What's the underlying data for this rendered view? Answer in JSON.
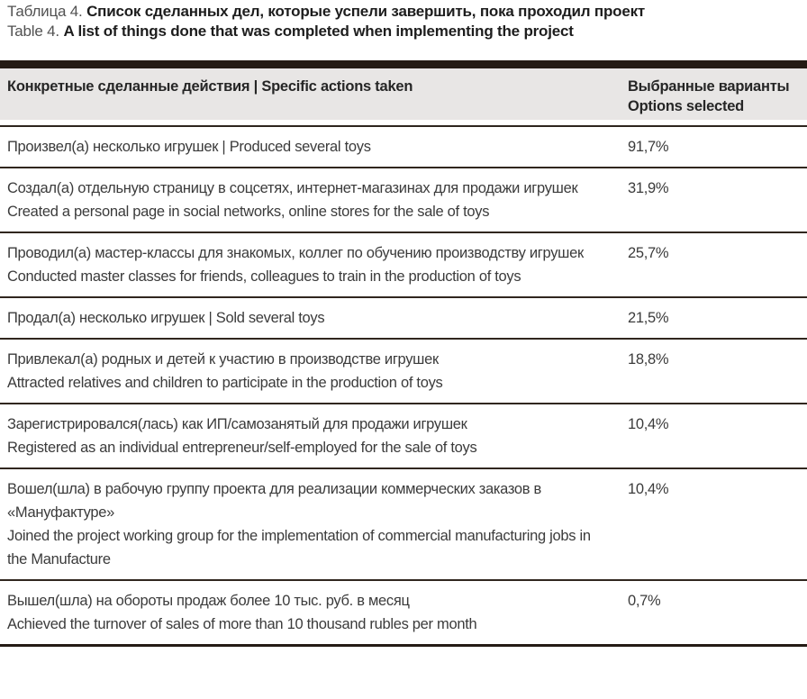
{
  "caption": {
    "ru_prefix": "Таблица 4.",
    "ru_title": "Список сделанных дел, которые успели завершить, пока проходил проект",
    "en_prefix": "Table 4.",
    "en_title": "A list of things done that was completed when implementing the project"
  },
  "table": {
    "header": {
      "actions": "Конкретные сделанные действия | Specific actions taken",
      "options_line1": "Выбранные варианты",
      "options_line2": "Options selected"
    },
    "rows": [
      {
        "lines": [
          "Произвел(а) несколько игрушек | Produced several toys"
        ],
        "value": "91,7%"
      },
      {
        "lines": [
          "Создал(а) отдельную страницу в соцсетях, интернет-магазинах для продажи игрушек",
          "Created a personal page in social networks, online stores for the sale of toys"
        ],
        "value": "31,9%"
      },
      {
        "lines": [
          "Проводил(а) мастер-классы для знакомых, коллег по обучению производству игрушек",
          "Conducted master classes for friends, colleagues to train in the production of toys"
        ],
        "value": "25,7%"
      },
      {
        "lines": [
          "Продал(а) несколько игрушек | Sold several toys"
        ],
        "value": "21,5%"
      },
      {
        "lines": [
          "Привлекал(а) родных и детей к участию в производстве игрушек",
          "Attracted relatives and children to participate in the production of toys"
        ],
        "value": "18,8%"
      },
      {
        "lines": [
          "Зарегистрировался(лась) как ИП/самозанятый для продажи игрушек",
          "Registered as an individual entrepreneur/self-employed for the sale of toys"
        ],
        "value": "10,4%"
      },
      {
        "lines": [
          "Вошел(шла) в рабочую группу проекта для реализации коммерческих заказов в «Мануфактуре»",
          "Joined the project working group for the implementation of commercial manufacturing jobs in the Manufacture"
        ],
        "value": "10,4%"
      },
      {
        "lines": [
          "Вышел(шла) на обороты продаж более 10 тыс. руб. в месяц",
          "Achieved the turnover of sales of more than 10 thousand rubles per month"
        ],
        "value": "0,7%"
      }
    ]
  },
  "colors": {
    "top_bar": "#241b14",
    "header_background": "#e8e6e5",
    "row_separator": "#30261e",
    "body_text": "#3b3b3b",
    "caption_bold_text": "#1d1d1d",
    "caption_prefix_text": "#525252"
  }
}
